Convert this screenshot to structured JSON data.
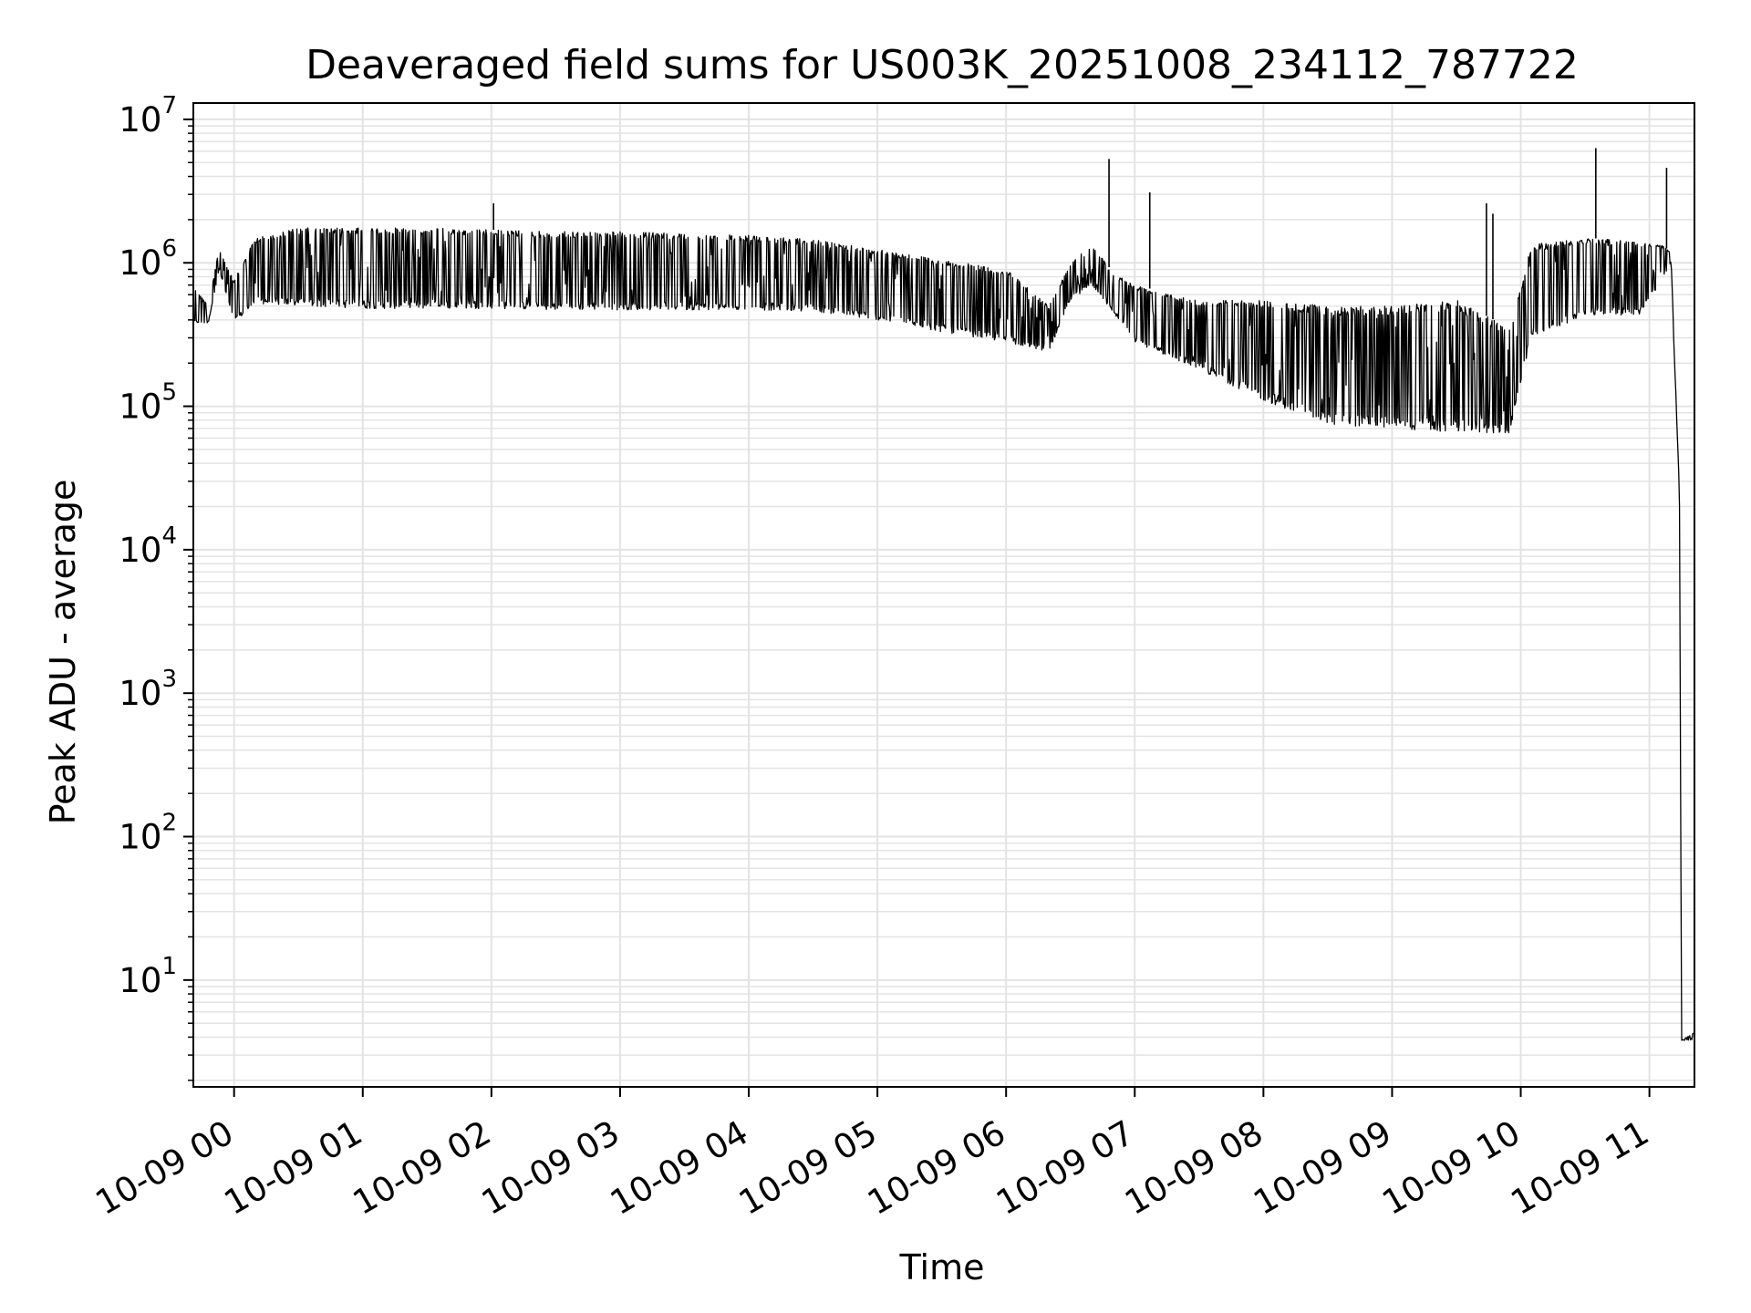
{
  "chart_data": {
    "type": "line",
    "title": "Deaveraged field sums for US003K_20251008_234112_787722",
    "xlabel": "Time",
    "ylabel": "Peak ADU - average",
    "yscale": "log",
    "ylim": [
      1.8,
      13000000
    ],
    "xlim": [
      "2025-10-08 23:41",
      "2025-10-09 11:21"
    ],
    "grid": true,
    "colors": {
      "line": "#000000",
      "grid": "#e3e3e3",
      "axes": "#000000"
    },
    "x_ticks": [
      {
        "value": "2025-10-09 00:00",
        "label": "10-09 00"
      },
      {
        "value": "2025-10-09 01:00",
        "label": "10-09 01"
      },
      {
        "value": "2025-10-09 02:00",
        "label": "10-09 02"
      },
      {
        "value": "2025-10-09 03:00",
        "label": "10-09 03"
      },
      {
        "value": "2025-10-09 04:00",
        "label": "10-09 04"
      },
      {
        "value": "2025-10-09 05:00",
        "label": "10-09 05"
      },
      {
        "value": "2025-10-09 06:00",
        "label": "10-09 06"
      },
      {
        "value": "2025-10-09 07:00",
        "label": "10-09 07"
      },
      {
        "value": "2025-10-09 08:00",
        "label": "10-09 08"
      },
      {
        "value": "2025-10-09 09:00",
        "label": "10-09 09"
      },
      {
        "value": "2025-10-09 10:00",
        "label": "10-09 10"
      },
      {
        "value": "2025-10-09 11:00",
        "label": "10-09 11"
      }
    ],
    "y_ticks": [
      {
        "value": 10,
        "base": "10",
        "exp": "1"
      },
      {
        "value": 100,
        "base": "10",
        "exp": "2"
      },
      {
        "value": 1000,
        "base": "10",
        "exp": "3"
      },
      {
        "value": 10000,
        "base": "10",
        "exp": "4"
      },
      {
        "value": 100000,
        "base": "10",
        "exp": "5"
      },
      {
        "value": 1000000,
        "base": "10",
        "exp": "6"
      },
      {
        "value": 10000000,
        "base": "10",
        "exp": "7"
      }
    ],
    "series": [
      {
        "upper": [
          [
            "2025-10-08 23:41",
            700000
          ],
          [
            "2025-10-08 23:48",
            500000
          ],
          [
            "2025-10-08 23:53",
            1250000
          ],
          [
            "2025-10-09 00:00",
            750000
          ],
          [
            "2025-10-09 00:10",
            1500000
          ],
          [
            "2025-10-09 00:30",
            1750000
          ],
          [
            "2025-10-09 01:00",
            1750000
          ],
          [
            "2025-10-09 01:30",
            1750000
          ],
          [
            "2025-10-09 02:00",
            1700000
          ],
          [
            "2025-10-09 02:30",
            1650000
          ],
          [
            "2025-10-09 03:00",
            1650000
          ],
          [
            "2025-10-09 03:30",
            1600000
          ],
          [
            "2025-10-09 04:00",
            1550000
          ],
          [
            "2025-10-09 04:30",
            1450000
          ],
          [
            "2025-10-09 05:00",
            1250000
          ],
          [
            "2025-10-09 05:30",
            1050000
          ],
          [
            "2025-10-09 06:00",
            900000
          ],
          [
            "2025-10-09 06:20",
            500000
          ],
          [
            "2025-10-09 06:30",
            1000000
          ],
          [
            "2025-10-09 06:40",
            1350000
          ],
          [
            "2025-10-09 06:50",
            850000
          ],
          [
            "2025-10-09 07:00",
            700000
          ],
          [
            "2025-10-09 07:30",
            550000
          ],
          [
            "2025-10-09 08:00",
            550000
          ],
          [
            "2025-10-09 08:30",
            500000
          ],
          [
            "2025-10-09 09:00",
            500000
          ],
          [
            "2025-10-09 09:30",
            550000
          ],
          [
            "2025-10-09 09:55",
            350000
          ],
          [
            "2025-10-09 10:05",
            1350000
          ],
          [
            "2025-10-09 10:30",
            1500000
          ],
          [
            "2025-10-09 10:55",
            1400000
          ],
          [
            "2025-10-09 11:05",
            1350000
          ],
          [
            "2025-10-09 11:10",
            1200000
          ],
          [
            "2025-10-09 11:14",
            25000
          ],
          [
            "2025-10-09 11:15",
            3.8
          ],
          [
            "2025-10-09 11:21",
            4.3
          ]
        ],
        "lower": [
          [
            "2025-10-08 23:41",
            380000
          ],
          [
            "2025-10-08 23:48",
            380000
          ],
          [
            "2025-10-08 23:53",
            900000
          ],
          [
            "2025-10-09 00:00",
            380000
          ],
          [
            "2025-10-09 00:10",
            520000
          ],
          [
            "2025-10-09 00:30",
            500000
          ],
          [
            "2025-10-09 01:00",
            480000
          ],
          [
            "2025-10-09 01:30",
            480000
          ],
          [
            "2025-10-09 02:00",
            480000
          ],
          [
            "2025-10-09 02:30",
            470000
          ],
          [
            "2025-10-09 03:00",
            470000
          ],
          [
            "2025-10-09 03:30",
            470000
          ],
          [
            "2025-10-09 04:00",
            470000
          ],
          [
            "2025-10-09 04:30",
            460000
          ],
          [
            "2025-10-09 05:00",
            400000
          ],
          [
            "2025-10-09 05:30",
            330000
          ],
          [
            "2025-10-09 06:00",
            280000
          ],
          [
            "2025-10-09 06:20",
            240000
          ],
          [
            "2025-10-09 06:30",
            550000
          ],
          [
            "2025-10-09 06:40",
            700000
          ],
          [
            "2025-10-09 06:50",
            450000
          ],
          [
            "2025-10-09 07:00",
            280000
          ],
          [
            "2025-10-09 07:30",
            180000
          ],
          [
            "2025-10-09 08:00",
            110000
          ],
          [
            "2025-10-09 08:30",
            75000
          ],
          [
            "2025-10-09 09:00",
            70000
          ],
          [
            "2025-10-09 09:30",
            65000
          ],
          [
            "2025-10-09 09:55",
            65000
          ],
          [
            "2025-10-09 10:05",
            300000
          ],
          [
            "2025-10-09 10:30",
            430000
          ],
          [
            "2025-10-09 10:55",
            430000
          ],
          [
            "2025-10-09 11:05",
            700000
          ],
          [
            "2025-10-09 11:10",
            1000000
          ],
          [
            "2025-10-09 11:14",
            25000
          ],
          [
            "2025-10-09 11:15",
            3.8
          ],
          [
            "2025-10-09 11:21",
            3.8
          ]
        ],
        "spikes": [
          [
            "2025-10-09 02:01",
            2600000
          ],
          [
            "2025-10-09 06:48",
            5300000
          ],
          [
            "2025-10-09 07:07",
            3100000
          ],
          [
            "2025-10-09 09:44",
            2600000
          ],
          [
            "2025-10-09 09:47",
            2200000
          ],
          [
            "2025-10-09 10:35",
            6300000
          ],
          [
            "2025-10-09 11:08",
            4600000
          ]
        ]
      }
    ]
  }
}
